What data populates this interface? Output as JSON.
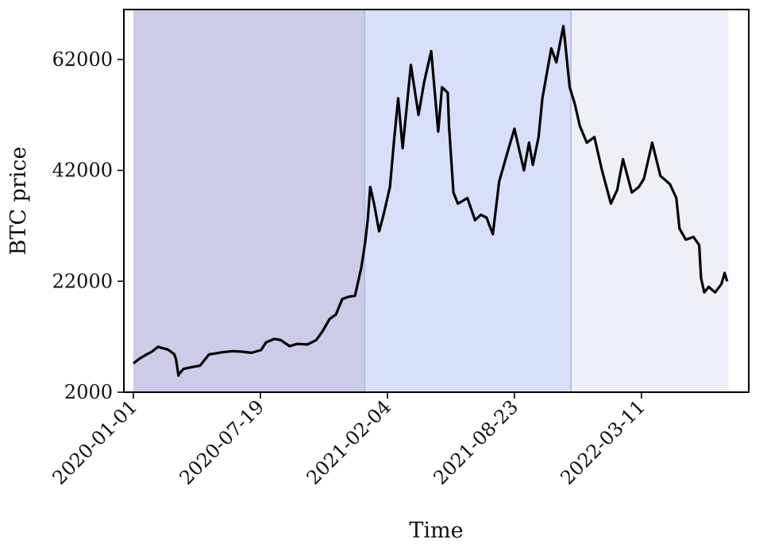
{
  "chart_data": {
    "type": "line",
    "title": "",
    "xlabel": "Time",
    "ylabel": "BTC price",
    "ylim": [
      2000,
      71000
    ],
    "xlim": [
      "2019-12-17",
      "2022-08-27"
    ],
    "yticks": [
      2000,
      22000,
      42000,
      62000
    ],
    "ytick_labels": [
      "2000",
      "22000",
      "42000",
      "62000"
    ],
    "xticks": [
      "2020-01-01",
      "2020-07-19",
      "2021-02-04",
      "2021-08-23",
      "2022-03-11"
    ],
    "xtick_labels": [
      "2020-01-01",
      "2020-07-19",
      "2021-02-04",
      "2021-08-23",
      "2022-03-11"
    ],
    "grid": false,
    "shaded_regions": [
      {
        "start": "2020-01-01",
        "end": "2020-12-30",
        "color": "#cccce9"
      },
      {
        "start": "2020-12-30",
        "end": "2021-11-20",
        "color": "#d8dff8"
      },
      {
        "start": "2021-11-20",
        "end": "2022-07-26",
        "color": "#eef0f7"
      }
    ],
    "series": [
      {
        "color": "#000000",
        "x": [
          "2020-01-01",
          "2020-01-10",
          "2020-01-20",
          "2020-01-30",
          "2020-02-09",
          "2020-02-14",
          "2020-02-24",
          "2020-03-05",
          "2020-03-08",
          "2020-03-12",
          "2020-03-13",
          "2020-03-20",
          "2020-04-01",
          "2020-04-15",
          "2020-04-29",
          "2020-05-10",
          "2020-05-20",
          "2020-06-05",
          "2020-06-20",
          "2020-07-05",
          "2020-07-20",
          "2020-07-28",
          "2020-08-10",
          "2020-08-20",
          "2020-09-03",
          "2020-09-15",
          "2020-10-01",
          "2020-10-15",
          "2020-10-25",
          "2020-11-05",
          "2020-11-15",
          "2020-11-25",
          "2020-12-05",
          "2020-12-15",
          "2020-12-25",
          "2020-12-31",
          "2021-01-04",
          "2021-01-08",
          "2021-01-14",
          "2021-01-22",
          "2021-01-29",
          "2021-02-08",
          "2021-02-15",
          "2021-02-21",
          "2021-02-28",
          "2021-03-13",
          "2021-03-25",
          "2021-04-03",
          "2021-04-14",
          "2021-04-25",
          "2021-05-01",
          "2021-05-10",
          "2021-05-12",
          "2021-05-19",
          "2021-05-26",
          "2021-06-10",
          "2021-06-22",
          "2021-07-01",
          "2021-07-10",
          "2021-07-20",
          "2021-07-30",
          "2021-08-14",
          "2021-08-23",
          "2021-09-07",
          "2021-09-15",
          "2021-09-21",
          "2021-09-30",
          "2021-10-06",
          "2021-10-20",
          "2021-10-28",
          "2021-11-08",
          "2021-11-10",
          "2021-11-18",
          "2021-11-26",
          "2021-12-04",
          "2021-12-15",
          "2021-12-27",
          "2022-01-08",
          "2022-01-22",
          "2022-02-01",
          "2022-02-10",
          "2022-02-24",
          "2022-03-07",
          "2022-03-15",
          "2022-03-28",
          "2022-04-10",
          "2022-04-25",
          "2022-05-05",
          "2022-05-10",
          "2022-05-20",
          "2022-06-01",
          "2022-06-10",
          "2022-06-13",
          "2022-06-18",
          "2022-06-25",
          "2022-07-05",
          "2022-07-15",
          "2022-07-20",
          "2022-07-24"
        ],
        "y": [
          7200,
          8000,
          8700,
          9300,
          10200,
          10000,
          9700,
          8900,
          8000,
          5000,
          5300,
          6200,
          6500,
          6800,
          8800,
          9000,
          9200,
          9400,
          9300,
          9100,
          9600,
          11000,
          11600,
          11400,
          10300,
          10700,
          10600,
          11400,
          13000,
          15200,
          16000,
          18800,
          19200,
          19400,
          24500,
          29000,
          33000,
          39000,
          36000,
          31000,
          34000,
          39000,
          48000,
          55000,
          46000,
          61000,
          52000,
          58000,
          63500,
          49000,
          57000,
          56000,
          50000,
          38000,
          36000,
          37000,
          33000,
          34000,
          33500,
          30500,
          40000,
          46000,
          49500,
          42000,
          47000,
          43000,
          48000,
          55000,
          64000,
          61500,
          68000,
          66000,
          57000,
          54000,
          50000,
          47000,
          48000,
          42000,
          36000,
          38500,
          44000,
          38000,
          39000,
          40500,
          47000,
          41000,
          39500,
          37000,
          31500,
          29500,
          30000,
          28500,
          22500,
          20000,
          21000,
          20000,
          21500,
          23500,
          22000
        ]
      }
    ]
  }
}
